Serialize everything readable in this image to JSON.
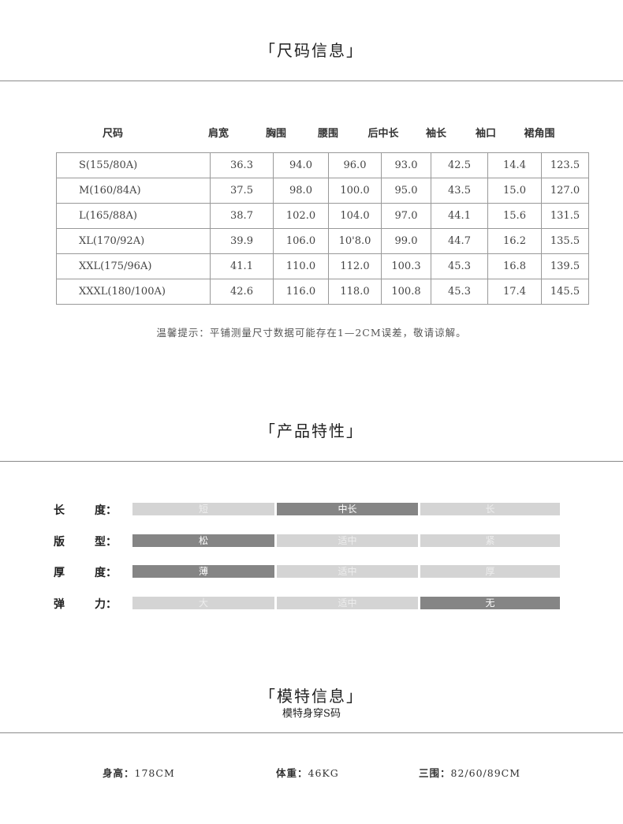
{
  "size_section": {
    "title": "「尺码信息」",
    "headers": [
      "尺码",
      "肩宽",
      "胸围",
      "腰围",
      "后中长",
      "袖长",
      "袖口",
      "裙角围"
    ],
    "rows": [
      [
        "S(155/80A)",
        "36.3",
        "94.0",
        "96.0",
        "93.0",
        "42.5",
        "14.4",
        "123.5"
      ],
      [
        "M(160/84A)",
        "37.5",
        "98.0",
        "100.0",
        "95.0",
        "43.5",
        "15.0",
        "127.0"
      ],
      [
        "L(165/88A)",
        "38.7",
        "102.0",
        "104.0",
        "97.0",
        "44.1",
        "15.6",
        "131.5"
      ],
      [
        "XL(170/92A)",
        "39.9",
        "106.0",
        "10'8.0",
        "99.0",
        "44.7",
        "16.2",
        "135.5"
      ],
      [
        "XXL(175/96A)",
        "41.1",
        "110.0",
        "112.0",
        "100.3",
        "45.3",
        "16.8",
        "139.5"
      ],
      [
        "XXXL(180/100A)",
        "42.6",
        "116.0",
        "118.0",
        "100.8",
        "45.3",
        "17.4",
        "145.5"
      ]
    ],
    "note": "温馨提示：平铺测量尺寸数据可能存在1—2CM误差，敬请谅解。"
  },
  "features_section": {
    "title": "「产品特性」",
    "colors": {
      "selected": "#858585",
      "unselected": "#d4d4d4"
    },
    "rows": [
      {
        "label_a": "长",
        "label_b": "度：",
        "options": [
          "短",
          "中长",
          "长"
        ],
        "selected": 1
      },
      {
        "label_a": "版",
        "label_b": "型：",
        "options": [
          "松",
          "适中",
          "紧"
        ],
        "selected": 0
      },
      {
        "label_a": "厚",
        "label_b": "度：",
        "options": [
          "薄",
          "适中",
          "厚"
        ],
        "selected": 0
      },
      {
        "label_a": "弹",
        "label_b": "力：",
        "options": [
          "大",
          "适中",
          "无"
        ],
        "selected": 2
      }
    ]
  },
  "model_section": {
    "title": "「模特信息」",
    "subtitle": "模特身穿S码",
    "height_label": "身高：",
    "height": "178CM",
    "weight_label": "体重：",
    "weight": "46KG",
    "measure_label": "三围：",
    "measurements": "82/60/89CM"
  }
}
